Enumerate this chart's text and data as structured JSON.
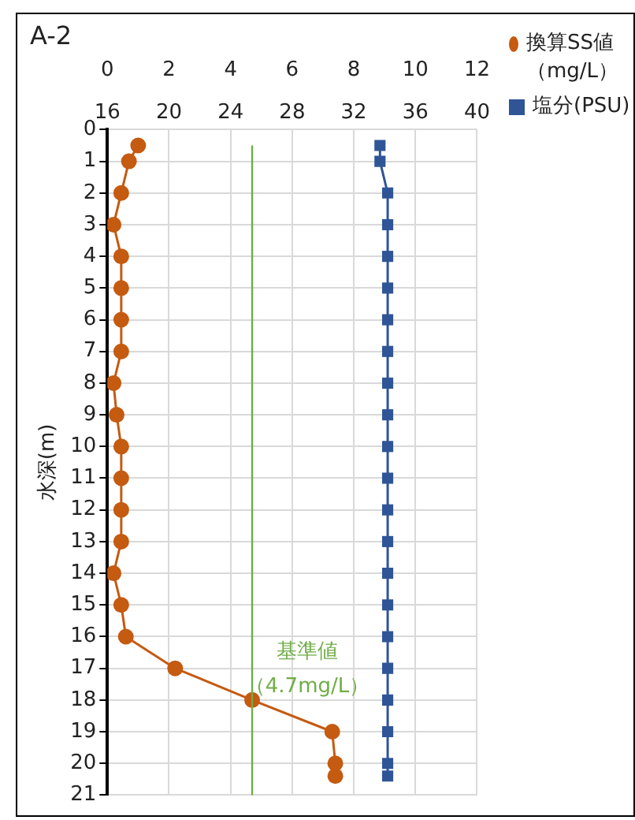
{
  "chart_data": {
    "type": "line",
    "title": "A-2",
    "ylabel": "水深(m)",
    "series": [
      {
        "name": "換算SS値（mg/L）",
        "color": "#c55a11",
        "marker": "circle",
        "x": [
          1.0,
          0.7,
          0.45,
          0.2,
          0.45,
          0.45,
          0.45,
          0.45,
          0.2,
          0.3,
          0.45,
          0.45,
          0.45,
          0.45,
          0.2,
          0.45,
          0.6,
          2.2,
          4.7,
          7.3,
          7.4,
          7.4
        ],
        "values": [
          0.5,
          1,
          2,
          3,
          4,
          5,
          6,
          7,
          8,
          9,
          10,
          11,
          12,
          13,
          14,
          15,
          16,
          17,
          18,
          19,
          20,
          20.4
        ]
      },
      {
        "name": "塩分(PSU)",
        "color": "#2f5597",
        "marker": "square",
        "axis": "x2",
        "x": [
          33.7,
          33.7,
          34.2,
          34.2,
          34.2,
          34.2,
          34.2,
          34.2,
          34.2,
          34.2,
          34.2,
          34.2,
          34.2,
          34.2,
          34.2,
          34.2,
          34.2,
          34.2,
          34.2,
          34.2,
          34.2,
          34.2
        ],
        "values": [
          0.5,
          1,
          2,
          3,
          4,
          5,
          6,
          7,
          8,
          9,
          10,
          11,
          12,
          13,
          14,
          15,
          16,
          17,
          18,
          19,
          20,
          20.4
        ]
      }
    ],
    "xlim": [
      0,
      12
    ],
    "xticks": [
      0,
      2,
      4,
      6,
      8,
      10,
      12
    ],
    "x2lim": [
      16,
      40
    ],
    "x2ticks": [
      16,
      20,
      24,
      28,
      32,
      36,
      40
    ],
    "ylim": [
      21,
      0
    ],
    "yticks": [
      0,
      1,
      2,
      3,
      4,
      5,
      6,
      7,
      8,
      9,
      10,
      11,
      12,
      13,
      14,
      15,
      16,
      17,
      18,
      19,
      20,
      21
    ],
    "ref_lines": [
      {
        "axis": "x",
        "value": 4.7,
        "label": "基準値（4.7mg/L）",
        "color": "#70ad47"
      }
    ],
    "grid": true,
    "legend": "top right",
    "line_style": "solid"
  }
}
